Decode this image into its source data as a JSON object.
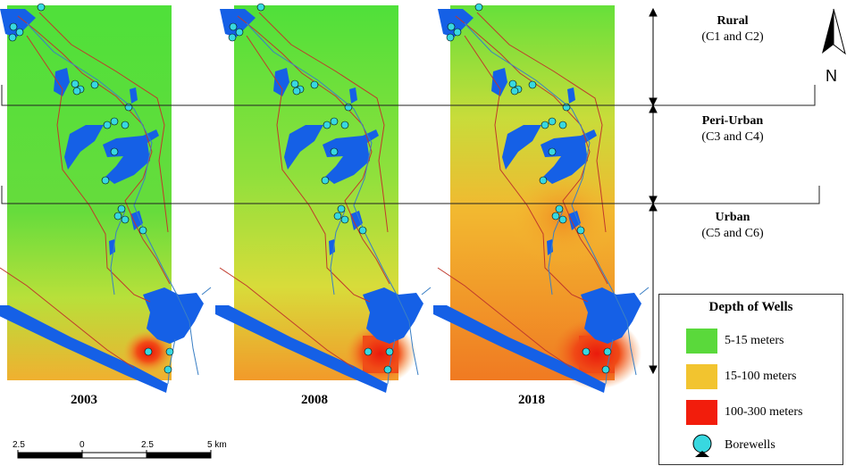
{
  "panels": [
    {
      "year": "2003"
    },
    {
      "year": "2008"
    },
    {
      "year": "2018"
    }
  ],
  "zones": [
    {
      "name": "Rural",
      "sub": "(C1 and C2)"
    },
    {
      "name": "Peri-Urban",
      "sub": "(C3 and C4)"
    },
    {
      "name": "Urban",
      "sub": "(C5 and C6)"
    }
  ],
  "legend": {
    "title": "Depth of Wells",
    "items": [
      {
        "label": "5-15 meters",
        "color": "#5ad93b"
      },
      {
        "label": "15-100 meters",
        "color": "#f2c42f"
      },
      {
        "label": "100-300 meters",
        "color": "#f21d0c"
      },
      {
        "label": "Borewells",
        "color": "#38d8e0",
        "icon": "borewell-icon"
      }
    ]
  },
  "scalebar": {
    "ticks": [
      "2.5",
      "0",
      "2.5",
      "5 km"
    ]
  },
  "north_arrow": {
    "label": "N",
    "icon": "north-arrow-icon"
  },
  "colors": {
    "water": "#1560e6",
    "boundary": "#c0392b",
    "stream": "#3a7fc4",
    "borewell": "#38d8e0"
  }
}
